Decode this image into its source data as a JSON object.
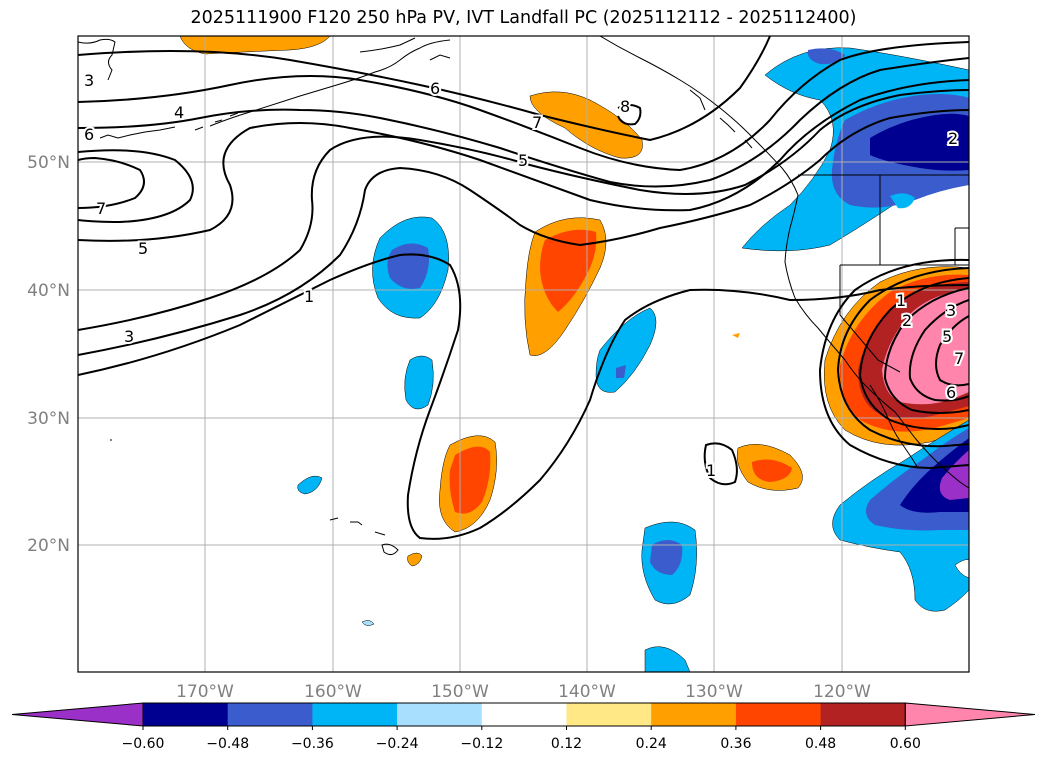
{
  "title": "2025111900 F120 250 hPa PV, IVT Landfall PC (2025112112 - 2025112400)",
  "map": {
    "lat_labels": [
      "50°N",
      "40°N",
      "30°N",
      "20°N"
    ],
    "lon_labels": [
      "170°W",
      "160°W",
      "150°W",
      "140°W",
      "130°W",
      "120°W"
    ],
    "contour_labels": [
      "3",
      "4",
      "6",
      "7",
      "5",
      "3",
      "1",
      "6",
      "7",
      "5",
      "8",
      "2",
      "1",
      "1",
      "2",
      "3",
      "5",
      "7",
      "6"
    ]
  },
  "colorbar": {
    "ticks": [
      "−0.60",
      "−0.48",
      "−0.36",
      "−0.24",
      "−0.12",
      "0.12",
      "0.24",
      "0.36",
      "0.48",
      "0.60"
    ],
    "colors": [
      "#9b30c8",
      "#000090",
      "#3a5ccc",
      "#00b5f5",
      "#a8dfff",
      "#ffffff",
      "#ffe885",
      "#ffa000",
      "#ff4500",
      "#b22222",
      "#ff85ad"
    ]
  },
  "colors": {
    "land_outline": "#000000",
    "contour": "#000000",
    "grid": "#b0b0b0",
    "tick_label": "#808080"
  }
}
